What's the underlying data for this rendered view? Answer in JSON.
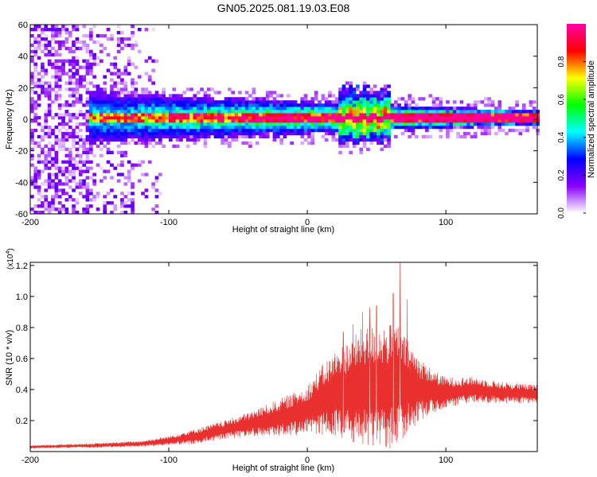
{
  "title": "GN05.2025.081.19.03.E08",
  "chart_data": [
    {
      "type": "heatmap",
      "xlabel": "Height of straight line (km)",
      "ylabel": "Frequency (Hz)",
      "xlim": [
        -200,
        166
      ],
      "ylim": [
        -60,
        60
      ],
      "xticks": [
        "-200",
        "-100",
        "0",
        "100"
      ],
      "yticks": [
        "60",
        "40",
        "20",
        "0",
        "-20",
        "-40",
        "-60"
      ],
      "grid": false,
      "colorbar": {
        "label": "Normalized spectral amplitude",
        "range": [
          0.0,
          1.0
        ],
        "ticks": [
          "0.0",
          "0.2",
          "0.4",
          "0.6",
          "0.8"
        ],
        "colormap": [
          "#ffffff",
          "#8a00ff",
          "#0000ff",
          "#00ffff",
          "#00ff00",
          "#ffff00",
          "#ff0000",
          "#ff00aa"
        ]
      },
      "pattern": {
        "noise_region_x": [
          -200,
          -105
        ],
        "band_center_hz": 0,
        "band_halfwidth_hz": [
          14,
          4
        ],
        "burst_x": [
          20,
          60
        ]
      }
    },
    {
      "type": "line",
      "xlabel": "Height of straight line (km)",
      "ylabel": "SNR (10 * v/v)",
      "multiplier": "(x10",
      "multiplier_exp": "4",
      "xlim": [
        -200,
        166
      ],
      "ylim": [
        0,
        1.22
      ],
      "xticks": [
        "-200",
        "-100",
        "0",
        "100"
      ],
      "yticks": [
        "1.2",
        "1.0",
        "0.8",
        "0.6",
        "0.4",
        "0.2"
      ],
      "grid": false,
      "series": [
        {
          "color": "#e8302e",
          "envelope": {
            "x": [
              -200,
              -150,
              -120,
              -100,
              -80,
              -60,
              -40,
              -30,
              -20,
              -10,
              0,
              10,
              20,
              30,
              40,
              50,
              60,
              65,
              70,
              80,
              90,
              100,
              120,
              140,
              166
            ],
            "mean": [
              0.03,
              0.04,
              0.05,
              0.07,
              0.1,
              0.14,
              0.18,
              0.2,
              0.22,
              0.24,
              0.27,
              0.33,
              0.37,
              0.39,
              0.42,
              0.42,
              0.42,
              0.45,
              0.42,
              0.4,
              0.39,
              0.38,
              0.4,
              0.38,
              0.37
            ],
            "amp": [
              0.01,
              0.015,
              0.02,
              0.03,
              0.05,
              0.06,
              0.08,
              0.1,
              0.12,
              0.14,
              0.16,
              0.22,
              0.28,
              0.33,
              0.38,
              0.4,
              0.4,
              0.4,
              0.33,
              0.22,
              0.14,
              0.1,
              0.08,
              0.07,
              0.06
            ]
          },
          "peaks": [
            {
              "x": 26,
              "y": 0.77
            },
            {
              "x": 33,
              "y": 0.82
            },
            {
              "x": 40,
              "y": 0.9
            },
            {
              "x": 45,
              "y": 0.93
            },
            {
              "x": 50,
              "y": 0.94
            },
            {
              "x": 62,
              "y": 1.02
            },
            {
              "x": 67,
              "y": 1.24
            },
            {
              "x": 72,
              "y": 0.98
            }
          ]
        }
      ]
    }
  ]
}
